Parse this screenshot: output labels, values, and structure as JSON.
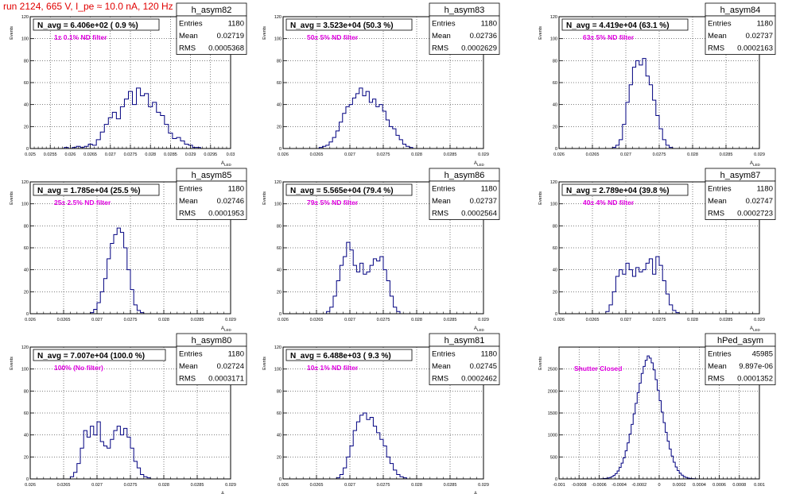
{
  "title": "run 2124,   665 V, I_pe ≈ 10.0 nA, 120 Hz",
  "stat_labels": {
    "entries": "Entries",
    "mean": "Mean",
    "rms": "RMS"
  },
  "colors": {
    "title": "#e00000",
    "annotation": "#e000e0",
    "histogram": "#000080",
    "grid": "#000000"
  },
  "chart_data": [
    {
      "type": "histogram",
      "name": "h_asym82",
      "navg": "N_avg = 6.406e+02 ( 0.9 %)",
      "annotation": "1± 0.1% ND filter",
      "stats": {
        "entries": "1180",
        "mean": "0.02719",
        "rms": "0.0005368"
      },
      "xlabel": "A",
      "xlabel_sub": "LED",
      "ylabel": "Events",
      "xlim": [
        0.025,
        0.03
      ],
      "ylim": [
        0,
        120
      ],
      "xticks": [
        "0.025",
        "0.0255",
        "0.026",
        "0.0265",
        "0.027",
        "0.0275",
        "0.028",
        "0.0285",
        "0.029",
        "0.0295",
        "0.03"
      ],
      "xtick_values": [
        0.025,
        0.0255,
        0.026,
        0.0265,
        0.027,
        0.0275,
        0.028,
        0.0285,
        0.029,
        0.0295,
        0.03
      ],
      "yticks": [
        "0",
        "20",
        "40",
        "60",
        "80",
        "100",
        "120"
      ],
      "ytick_values": [
        0,
        20,
        40,
        60,
        80,
        100,
        120
      ],
      "bins": {
        "start": 0.02575,
        "width": 0.0001,
        "counts": [
          0,
          1,
          0,
          1,
          2,
          1,
          2,
          4,
          3,
          8,
          15,
          22,
          28,
          33,
          27,
          38,
          45,
          52,
          40,
          55,
          48,
          50,
          38,
          42,
          33,
          30,
          22,
          14,
          9,
          10,
          7,
          4,
          3,
          1,
          1,
          0
        ]
      }
    },
    {
      "type": "histogram",
      "name": "h_asym83",
      "navg": "N_avg = 3.523e+04 (50.3 %)",
      "annotation": "50± 5% ND filter",
      "stats": {
        "entries": "1180",
        "mean": "0.02736",
        "rms": "0.0002629"
      },
      "xlabel": "A",
      "xlabel_sub": "LED",
      "ylabel": "Events",
      "xlim": [
        0.026,
        0.029
      ],
      "ylim": [
        0,
        120
      ],
      "xticks": [
        "0.026",
        "0.0265",
        "0.027",
        "0.0275",
        "0.028",
        "0.0285",
        "0.029"
      ],
      "xtick_values": [
        0.026,
        0.0265,
        0.027,
        0.0275,
        0.028,
        0.0285,
        0.029
      ],
      "yticks": [
        "0",
        "20",
        "40",
        "60",
        "80",
        "100",
        "120"
      ],
      "ytick_values": [
        0,
        20,
        40,
        60,
        80,
        100,
        120
      ],
      "bins": {
        "start": 0.02654,
        "width": 5e-05,
        "counts": [
          1,
          2,
          3,
          6,
          10,
          16,
          24,
          32,
          38,
          40,
          46,
          50,
          55,
          48,
          52,
          42,
          45,
          38,
          40,
          34,
          26,
          20,
          18,
          12,
          8,
          4,
          2,
          1
        ]
      }
    },
    {
      "type": "histogram",
      "name": "h_asym84",
      "navg": "N_avg = 4.419e+04 (63.1 %)",
      "annotation": "63± 5% ND filter",
      "stats": {
        "entries": "1180",
        "mean": "0.02737",
        "rms": "0.0002163"
      },
      "xlabel": "A",
      "xlabel_sub": "LED",
      "ylabel": "Events",
      "xlim": [
        0.026,
        0.029
      ],
      "ylim": [
        0,
        120
      ],
      "xticks": [
        "0.026",
        "0.0265",
        "0.027",
        "0.0275",
        "0.028",
        "0.0285",
        "0.029"
      ],
      "xtick_values": [
        0.026,
        0.0265,
        0.027,
        0.0275,
        0.028,
        0.0285,
        0.029
      ],
      "yticks": [
        "0",
        "20",
        "40",
        "60",
        "80",
        "100",
        "120"
      ],
      "ytick_values": [
        0,
        20,
        40,
        60,
        80,
        100,
        120
      ],
      "bins": {
        "start": 0.0268,
        "width": 5e-05,
        "counts": [
          1,
          3,
          8,
          22,
          42,
          58,
          74,
          80,
          76,
          82,
          66,
          58,
          44,
          30,
          18,
          8,
          3,
          1
        ]
      }
    },
    {
      "type": "histogram",
      "name": "h_asym85",
      "navg": "N_avg = 1.785e+04 (25.5 %)",
      "annotation": "25± 2.5% ND filter",
      "stats": {
        "entries": "1180",
        "mean": "0.02746",
        "rms": "0.0001953"
      },
      "xlabel": "A",
      "xlabel_sub": "LED",
      "ylabel": "Events",
      "xlim": [
        0.026,
        0.029
      ],
      "ylim": [
        0,
        120
      ],
      "xticks": [
        "0.026",
        "0.0265",
        "0.027",
        "0.0275",
        "0.028",
        "0.0285",
        "0.029"
      ],
      "xtick_values": [
        0.026,
        0.0265,
        0.027,
        0.0275,
        0.028,
        0.0285,
        0.029
      ],
      "yticks": [
        "0",
        "20",
        "40",
        "60",
        "80",
        "100",
        "120"
      ],
      "ytick_values": [
        0,
        20,
        40,
        60,
        80,
        100,
        120
      ],
      "bins": {
        "start": 0.0269,
        "width": 5e-05,
        "counts": [
          1,
          4,
          10,
          20,
          32,
          50,
          64,
          72,
          78,
          74,
          60,
          40,
          22,
          8,
          3,
          1
        ]
      }
    },
    {
      "type": "histogram",
      "name": "h_asym86",
      "navg": "N_avg = 5.565e+04 (79.4 %)",
      "annotation": "79± 5% ND filter",
      "stats": {
        "entries": "1180",
        "mean": "0.02737",
        "rms": "0.0002564"
      },
      "xlabel": "A",
      "xlabel_sub": "LED",
      "ylabel": "Events",
      "xlim": [
        0.026,
        0.029
      ],
      "ylim": [
        0,
        120
      ],
      "xticks": [
        "0.026",
        "0.0265",
        "0.027",
        "0.0275",
        "0.028",
        "0.0285",
        "0.029"
      ],
      "xtick_values": [
        0.026,
        0.0265,
        0.027,
        0.0275,
        0.028,
        0.0285,
        0.029
      ],
      "yticks": [
        "0",
        "20",
        "40",
        "60",
        "80",
        "100",
        "120"
      ],
      "ytick_values": [
        0,
        20,
        40,
        60,
        80,
        100,
        120
      ],
      "bins": {
        "start": 0.02665,
        "width": 5e-05,
        "counts": [
          2,
          6,
          16,
          30,
          44,
          52,
          65,
          58,
          44,
          38,
          46,
          36,
          38,
          44,
          50,
          48,
          52,
          40,
          30,
          16,
          6,
          2
        ]
      }
    },
    {
      "type": "histogram",
      "name": "h_asym87",
      "navg": "N_avg = 2.789e+04 (39.8 %)",
      "annotation": "40± 4% ND filter",
      "stats": {
        "entries": "1180",
        "mean": "0.02747",
        "rms": "0.0002723"
      },
      "xlabel": "A",
      "xlabel_sub": "LED",
      "ylabel": "Events",
      "xlim": [
        0.026,
        0.029
      ],
      "ylim": [
        0,
        120
      ],
      "xticks": [
        "0.026",
        "0.0265",
        "0.027",
        "0.0275",
        "0.028",
        "0.0285",
        "0.029"
      ],
      "xtick_values": [
        0.026,
        0.0265,
        0.027,
        0.0275,
        0.028,
        0.0285,
        0.029
      ],
      "yticks": [
        "0",
        "20",
        "40",
        "60",
        "80",
        "100",
        "120"
      ],
      "ytick_values": [
        0,
        20,
        40,
        60,
        80,
        100,
        120
      ],
      "bins": {
        "start": 0.0267,
        "width": 5e-05,
        "counts": [
          2,
          8,
          20,
          34,
          40,
          36,
          46,
          40,
          34,
          42,
          38,
          40,
          46,
          50,
          36,
          52,
          44,
          30,
          18,
          8,
          3,
          1
        ]
      }
    },
    {
      "type": "histogram",
      "name": "h_asym80",
      "navg": "N_avg = 7.007e+04 (100.0 %)",
      "annotation": "100% (No filter)",
      "stats": {
        "entries": "1180",
        "mean": "0.02724",
        "rms": "0.0003171"
      },
      "xlabel": "A",
      "xlabel_sub": "LED",
      "ylabel": "Events",
      "xlim": [
        0.026,
        0.029
      ],
      "ylim": [
        0,
        120
      ],
      "xticks": [
        "0.026",
        "0.0265",
        "0.027",
        "0.0275",
        "0.028",
        "0.0285",
        "0.029"
      ],
      "xtick_values": [
        0.026,
        0.0265,
        0.027,
        0.0275,
        0.028,
        0.0285,
        0.029
      ],
      "yticks": [
        "0",
        "20",
        "40",
        "60",
        "80",
        "100",
        "120"
      ],
      "ytick_values": [
        0,
        20,
        40,
        60,
        80,
        100,
        120
      ],
      "bins": {
        "start": 0.0266,
        "width": 5e-05,
        "counts": [
          2,
          6,
          14,
          28,
          44,
          38,
          48,
          40,
          52,
          34,
          30,
          28,
          36,
          44,
          48,
          40,
          46,
          38,
          28,
          16,
          10,
          4,
          2,
          1
        ]
      }
    },
    {
      "type": "histogram",
      "name": "h_asym81",
      "navg": "N_avg = 6.488e+03 ( 9.3 %)",
      "annotation": "10± 1% ND filter",
      "stats": {
        "entries": "1180",
        "mean": "0.02745",
        "rms": "0.0002462"
      },
      "xlabel": "A",
      "xlabel_sub": "LED",
      "ylabel": "Events",
      "xlim": [
        0.026,
        0.029
      ],
      "ylim": [
        0,
        120
      ],
      "xticks": [
        "0.026",
        "0.0265",
        "0.027",
        "0.0275",
        "0.028",
        "0.0285",
        "0.029"
      ],
      "xtick_values": [
        0.026,
        0.0265,
        0.027,
        0.0275,
        0.028,
        0.0285,
        0.029
      ],
      "yticks": [
        "0",
        "20",
        "40",
        "60",
        "80",
        "100",
        "120"
      ],
      "ytick_values": [
        0,
        20,
        40,
        60,
        80,
        100,
        120
      ],
      "bins": {
        "start": 0.0268,
        "width": 5e-05,
        "counts": [
          1,
          4,
          10,
          20,
          30,
          44,
          52,
          58,
          60,
          54,
          56,
          48,
          42,
          36,
          30,
          20,
          14,
          8,
          4,
          2,
          1
        ]
      }
    },
    {
      "type": "histogram",
      "name": "hPed_asym",
      "navg": "",
      "annotation": "Shutter Closed",
      "stats": {
        "entries": "45985",
        "mean": "9.897e-06",
        "rms": "0.0001352"
      },
      "xlabel": "",
      "xlabel_sub": "",
      "ylabel": "Events",
      "xlim": [
        -0.001,
        0.001
      ],
      "ylim": [
        0,
        3000
      ],
      "xticks": [
        "-0.001",
        "-0.0008",
        "-0.0006",
        "-0.0004",
        "-0.0002",
        "0",
        "0.0002",
        "0.0004",
        "0.0006",
        "0.0008",
        "0.001"
      ],
      "xtick_values": [
        -0.001,
        -0.0008,
        -0.0006,
        -0.0004,
        -0.0002,
        0,
        0.0002,
        0.0004,
        0.0006,
        0.0008,
        0.001
      ],
      "yticks": [
        "0",
        "500",
        "1000",
        "1500",
        "2000",
        "2500"
      ],
      "ytick_values": [
        0,
        500,
        1000,
        1500,
        2000,
        2500
      ],
      "bins": {
        "start": -0.0006,
        "width": 2e-05,
        "counts": [
          2,
          4,
          8,
          12,
          20,
          32,
          50,
          80,
          120,
          180,
          260,
          360,
          480,
          640,
          820,
          1020,
          1240,
          1480,
          1720,
          1960,
          2180,
          2400,
          2560,
          2700,
          2800,
          2750,
          2640,
          2480,
          2260,
          2020,
          1780,
          1520,
          1280,
          1060,
          860,
          680,
          520,
          380,
          270,
          190,
          130,
          85,
          55,
          35,
          20,
          12,
          7,
          4,
          2,
          1,
          1,
          0,
          0,
          0,
          0,
          0,
          0,
          0,
          0,
          0
        ]
      }
    }
  ]
}
